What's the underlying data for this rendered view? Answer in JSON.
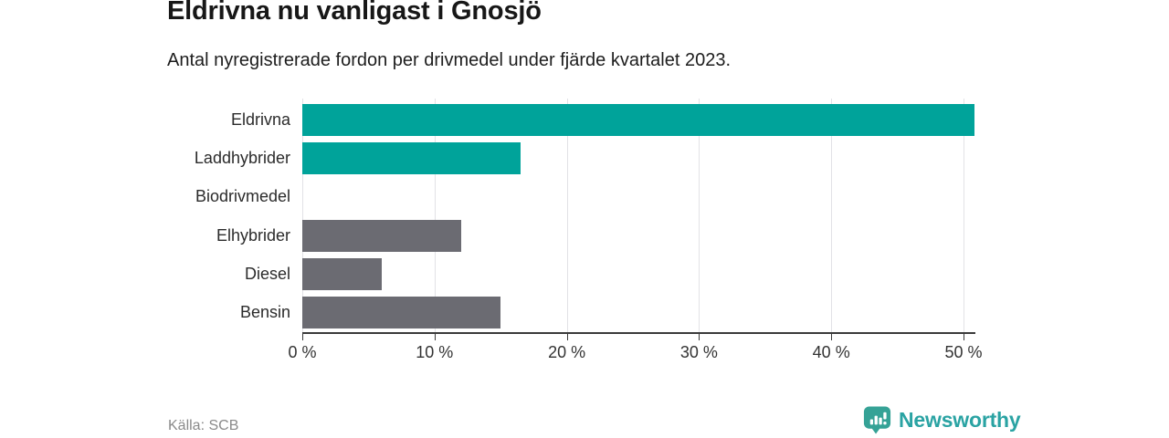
{
  "header": {
    "title": "Eldrivna nu vanligast i Gnosjö",
    "subtitle": "Antal nyregistrerade fordon per drivmedel under fjärde kvartalet 2023."
  },
  "footer": {
    "source": "Källa: SCB",
    "brand": "Newsworthy"
  },
  "colors": {
    "teal": "#00a39a",
    "gray": "#6b6b72",
    "gridline": "#e2e2e6",
    "axis": "#3a3a3a",
    "brand_icon": "#35a296",
    "brand_text": "#2aa3a3"
  },
  "chart_data": {
    "type": "bar",
    "orientation": "horizontal",
    "title": "Eldrivna nu vanligast i Gnosjö",
    "subtitle": "Antal nyregistrerade fordon per drivmedel under fjärde kvartalet 2023.",
    "source": "Källa: SCB",
    "categories": [
      "Eldrivna",
      "Laddhybrider",
      "Biodrivmedel",
      "Elhybrider",
      "Diesel",
      "Bensin"
    ],
    "values": [
      50.8,
      16.5,
      0,
      12.0,
      6.0,
      15.0
    ],
    "unit": "%",
    "bar_colors": [
      "teal",
      "teal",
      "teal",
      "gray",
      "gray",
      "gray"
    ],
    "x_ticks": [
      "0 %",
      "10 %",
      "20 %",
      "30 %",
      "40 %",
      "50 %"
    ],
    "x_tick_values": [
      0,
      10,
      20,
      30,
      40,
      50
    ],
    "xlim": [
      0,
      50.85
    ],
    "grid": true,
    "legend": false
  }
}
